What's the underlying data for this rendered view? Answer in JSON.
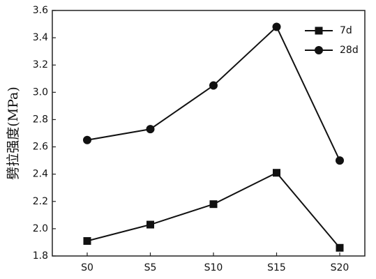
{
  "chart_data": {
    "type": "line",
    "y_label": "劈拉强度(MPa)",
    "categories": [
      "S0",
      "S5",
      "S10",
      "S15",
      "S20"
    ],
    "series": [
      {
        "name": "7d",
        "color": "#111111",
        "marker": "square",
        "values": [
          1.91,
          2.03,
          2.18,
          2.41,
          1.86
        ]
      },
      {
        "name": "28d",
        "color": "#111111",
        "marker": "circle",
        "values": [
          2.65,
          2.73,
          3.05,
          3.48,
          2.5
        ]
      }
    ],
    "ylim": [
      1.8,
      3.6
    ],
    "yticks": [
      1.8,
      {
        "value": 2.0,
        "label": "2.0"
      },
      2.2,
      2.4,
      2.6,
      2.8,
      {
        "value": 3.0,
        "label": "3.0"
      },
      3.2,
      3.4,
      3.6
    ],
    "legend": "upper right"
  }
}
